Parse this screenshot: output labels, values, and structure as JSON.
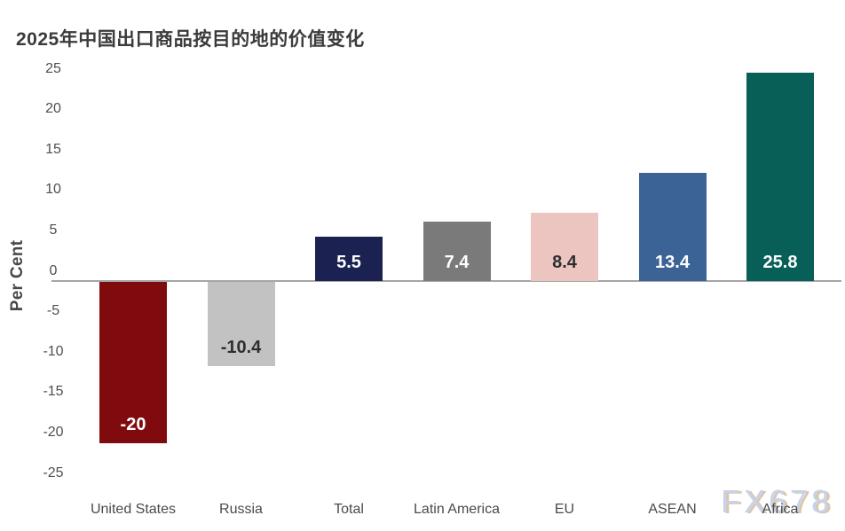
{
  "watermark": {
    "text": "FX678"
  },
  "chart_data": {
    "type": "bar",
    "title": "2025年中国出口商品按目的地的价值变化",
    "ylabel": "Per Cent",
    "xlabel": "",
    "categories": [
      "United States",
      "Russia",
      "Total",
      "Latin America",
      "EU",
      "ASEAN",
      "Africa"
    ],
    "values": [
      -20,
      -10.4,
      5.5,
      7.4,
      8.4,
      13.4,
      25.8
    ],
    "value_labels": [
      "-20",
      "-10.4",
      "5.5",
      "7.4",
      "8.4",
      "13.4",
      "25.8"
    ],
    "bar_colors": [
      "#800b0e",
      "#c2c2c2",
      "#1b2150",
      "#7a7a7a",
      "#ecc5c1",
      "#3b6396",
      "#075f57"
    ],
    "value_label_colors": [
      "#ffffff",
      "#2e2e2e",
      "#ffffff",
      "#ffffff",
      "#2e2e2e",
      "#ffffff",
      "#ffffff"
    ],
    "ylim": [
      -25,
      25
    ],
    "yticks": [
      25,
      20,
      15,
      10,
      5,
      0,
      -5,
      -10,
      -15,
      -20,
      -25
    ],
    "grid": false,
    "legend": "none",
    "axis_line_color": "#a6a6a6",
    "tick_text_color": "#4f4f4f"
  }
}
